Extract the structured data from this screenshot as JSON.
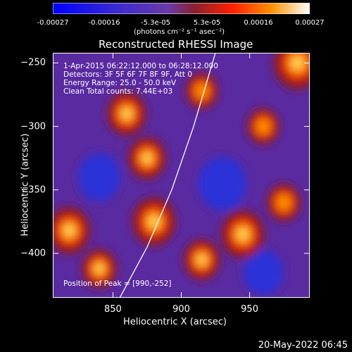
{
  "title": "Reconstructed RHESSI Image",
  "colorbar": {
    "ticks": [
      "-0.00027",
      "-0.00016",
      "-5.3e-05",
      "5.3e-05",
      "0.00016",
      "0.00027"
    ],
    "units": "(photons cm⁻² s⁻¹ asec⁻²)"
  },
  "info": {
    "time": "1-Apr-2015 06:22:12.000 to 06:28:12.000",
    "detectors": "Detectors: 3F 5F 6F 7F 8F 9F, Att 0",
    "energy": "Energy Range: 25.0 - 50.0 keV",
    "method": "Clean    Total counts: 7.44E+03",
    "peak": "Position of Peak = [990,-252]"
  },
  "footer_date": "20-May-2022 06:45",
  "chart_data": {
    "type": "heatmap",
    "title": "Reconstructed RHESSI Image",
    "xlabel": "Heliocentric X (arcsec)",
    "ylabel": "Heliocentric Y (arcsec)",
    "xlim": [
      806,
      994
    ],
    "ylim": [
      -435,
      -242
    ],
    "x_ticks": [
      850,
      900,
      950
    ],
    "y_ticks": [
      -250,
      -300,
      -350,
      -400
    ],
    "x_tick_labels": [
      "850",
      "900",
      "950"
    ],
    "y_tick_labels": [
      "−250",
      "−300",
      "−350",
      "−400"
    ],
    "colorbar_range": [
      -0.00027,
      0.00027
    ],
    "peak": [
      990,
      -252
    ],
    "limb_curve": [
      [
        855,
        -435
      ],
      [
        875,
        -395
      ],
      [
        893,
        -350
      ],
      [
        909,
        -300
      ],
      [
        925,
        -242
      ]
    ],
    "hot_spots": [
      {
        "x": 985,
        "y": -250,
        "level": 1.0
      },
      {
        "x": 818,
        "y": -382,
        "level": 0.8
      },
      {
        "x": 880,
        "y": -375,
        "level": 0.85
      },
      {
        "x": 945,
        "y": -385,
        "level": 0.85
      },
      {
        "x": 860,
        "y": -290,
        "level": 0.7
      },
      {
        "x": 875,
        "y": -325,
        "level": 0.65
      },
      {
        "x": 915,
        "y": -405,
        "level": 0.6
      },
      {
        "x": 840,
        "y": -412,
        "level": 0.55
      },
      {
        "x": 975,
        "y": -360,
        "level": 0.5
      },
      {
        "x": 915,
        "y": -272,
        "level": 0.45
      },
      {
        "x": 960,
        "y": -300,
        "level": 0.45
      }
    ],
    "cold_spots": [
      {
        "x": 840,
        "y": -340,
        "level": 0.6
      },
      {
        "x": 930,
        "y": -345,
        "level": 0.8
      },
      {
        "x": 960,
        "y": -415,
        "level": 0.5
      }
    ]
  }
}
